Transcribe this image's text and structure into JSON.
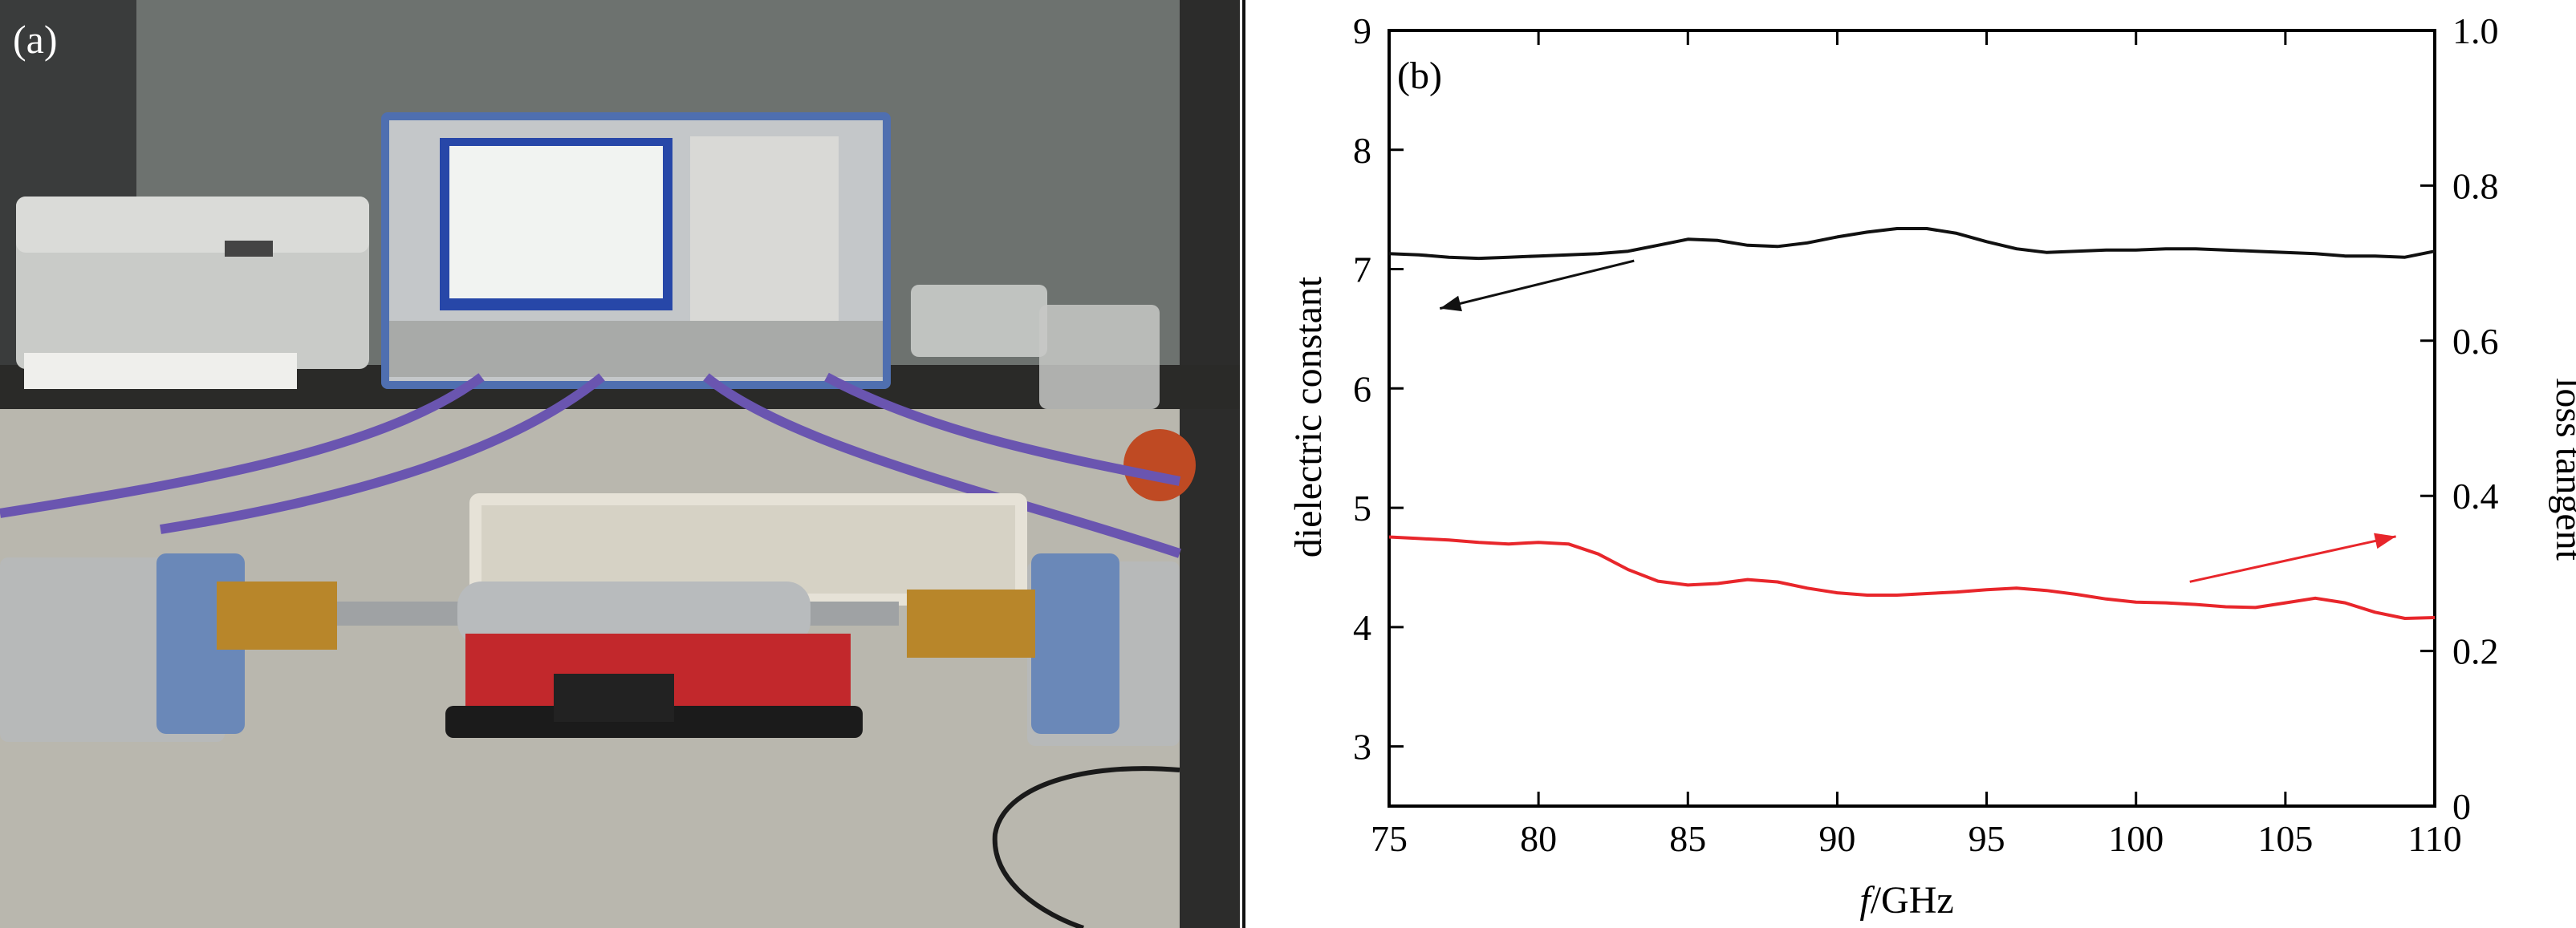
{
  "photo_panel": {
    "label": "(a)",
    "content": "measurement-setup-photo"
  },
  "chart_data": {
    "type": "line",
    "panel_label": "(b)",
    "xlabel_italic": "f",
    "xlabel_rest": "/GHz",
    "ylabel_left": "dielectric constant",
    "ylabel_right": "loss tangent",
    "xlim": [
      75,
      110
    ],
    "ylim_left": [
      2.5,
      9
    ],
    "ylim_right": [
      0,
      1.0
    ],
    "x_ticks": [
      75,
      80,
      85,
      90,
      95,
      100,
      105,
      110
    ],
    "y_left_ticks": [
      3,
      4,
      5,
      6,
      7,
      8,
      9
    ],
    "y_right_ticks": [
      "0",
      "0.2",
      "0.4",
      "0.6",
      "0.8",
      "1.0"
    ],
    "y_right_tick_values": [
      0,
      0.2,
      0.4,
      0.6,
      0.8,
      1.0
    ],
    "grid": false,
    "series": [
      {
        "axis": "left",
        "color": "#111111",
        "x": [
          75,
          76,
          77,
          78,
          79,
          80,
          81,
          82,
          83,
          84,
          85,
          86,
          87,
          88,
          89,
          90,
          91,
          92,
          93,
          94,
          95,
          96,
          97,
          98,
          99,
          100,
          101,
          102,
          103,
          104,
          105,
          106,
          107,
          108,
          109,
          110
        ],
        "y": [
          7.13,
          7.12,
          7.1,
          7.09,
          7.1,
          7.11,
          7.12,
          7.13,
          7.15,
          7.2,
          7.25,
          7.24,
          7.2,
          7.19,
          7.22,
          7.27,
          7.31,
          7.34,
          7.34,
          7.3,
          7.23,
          7.17,
          7.14,
          7.15,
          7.16,
          7.16,
          7.17,
          7.17,
          7.16,
          7.15,
          7.14,
          7.13,
          7.11,
          7.11,
          7.1,
          7.15
        ]
      },
      {
        "axis": "right",
        "color": "#e8262b",
        "x": [
          75,
          76,
          77,
          78,
          79,
          80,
          81,
          82,
          83,
          84,
          85,
          86,
          87,
          88,
          89,
          90,
          91,
          92,
          93,
          94,
          95,
          96,
          97,
          98,
          99,
          100,
          101,
          102,
          103,
          104,
          105,
          106,
          107,
          108,
          109,
          110
        ],
        "y": [
          0.347,
          0.345,
          0.343,
          0.34,
          0.338,
          0.34,
          0.338,
          0.325,
          0.305,
          0.29,
          0.285,
          0.287,
          0.292,
          0.289,
          0.281,
          0.275,
          0.272,
          0.272,
          0.274,
          0.276,
          0.279,
          0.281,
          0.278,
          0.273,
          0.267,
          0.263,
          0.262,
          0.26,
          0.257,
          0.256,
          0.262,
          0.268,
          0.262,
          0.25,
          0.242,
          0.243
        ]
      }
    ],
    "arrows": [
      {
        "from": [
          83.2,
          7.07
        ],
        "to": [
          76.7,
          6.67
        ],
        "color": "#111111"
      },
      {
        "from": [
          101.8,
          4.38
        ],
        "to": [
          108.7,
          4.76
        ],
        "color": "#e8262b"
      }
    ]
  }
}
